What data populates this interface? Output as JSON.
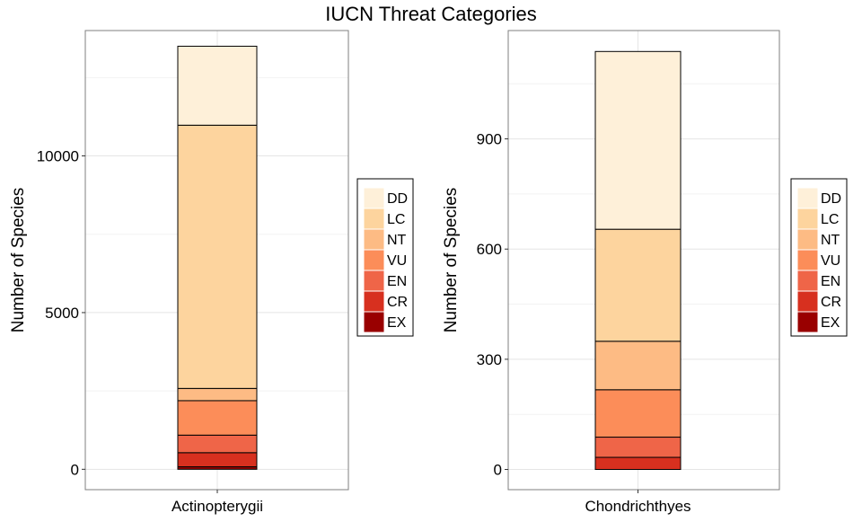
{
  "page": {
    "title": "IUCN Threat Categories"
  },
  "legend": {
    "position": "right",
    "entries": [
      {
        "label": "DD",
        "color": "#FEF0D9"
      },
      {
        "label": "LC",
        "color": "#FDD49E"
      },
      {
        "label": "NT",
        "color": "#FDBB84"
      },
      {
        "label": "VU",
        "color": "#FC8D59"
      },
      {
        "label": "EN",
        "color": "#EF6548"
      },
      {
        "label": "CR",
        "color": "#D7301F"
      },
      {
        "label": "EX",
        "color": "#990000"
      }
    ]
  },
  "chart_data": [
    {
      "type": "bar",
      "stacked": true,
      "ylabel": "Number of Species",
      "categories": [
        "Actinopterygii"
      ],
      "ylim": [
        -650,
        14000
      ],
      "yticks": [
        0,
        5000,
        10000
      ],
      "ytick_labels": [
        "0",
        "5000",
        "10000"
      ],
      "grid": true,
      "series": [
        {
          "name": "EX",
          "values": [
            80
          ]
        },
        {
          "name": "CR",
          "values": [
            450
          ]
        },
        {
          "name": "EN",
          "values": [
            560
          ]
        },
        {
          "name": "VU",
          "values": [
            1100
          ]
        },
        {
          "name": "NT",
          "values": [
            390
          ]
        },
        {
          "name": "LC",
          "values": [
            8400
          ]
        },
        {
          "name": "DD",
          "values": [
            2520
          ]
        }
      ]
    },
    {
      "type": "bar",
      "stacked": true,
      "ylabel": "Number of Species",
      "categories": [
        "Chondrichthyes"
      ],
      "ylim": [
        -55,
        1195
      ],
      "yticks": [
        0,
        300,
        600,
        900
      ],
      "ytick_labels": [
        "0",
        "300",
        "600",
        "900"
      ],
      "grid": true,
      "series": [
        {
          "name": "EX",
          "values": [
            0
          ]
        },
        {
          "name": "CR",
          "values": [
            33
          ]
        },
        {
          "name": "EN",
          "values": [
            55
          ]
        },
        {
          "name": "VU",
          "values": [
            129
          ]
        },
        {
          "name": "NT",
          "values": [
            132
          ]
        },
        {
          "name": "LC",
          "values": [
            305
          ]
        },
        {
          "name": "DD",
          "values": [
            484
          ]
        }
      ]
    }
  ]
}
